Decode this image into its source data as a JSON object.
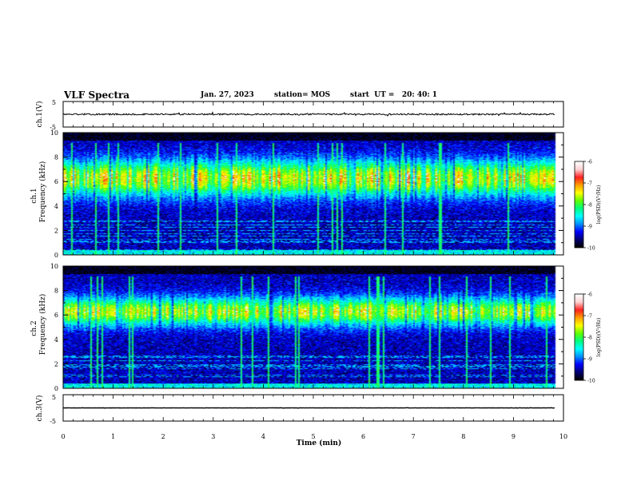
{
  "header": {
    "title": "VLF Spectra",
    "date": "Jan. 27, 2023",
    "station": "station= MOS",
    "start": "start  UT =   20: 40: 1"
  },
  "chart_data": [
    {
      "type": "line",
      "panel": "ch1-waveform",
      "ylabel": "ch.1(V)",
      "ylim": [
        -5,
        5
      ],
      "yticks": [
        "5",
        "-5"
      ],
      "series": [
        {
          "level": 0,
          "noise": 0.3
        }
      ]
    },
    {
      "type": "heatmap",
      "panel": "ch1-spectrogram",
      "ylabel": "ch.1\nFrequency (kHz)",
      "ylim": [
        0,
        10
      ],
      "yticks": [
        "0",
        "2",
        "4",
        "6",
        "8",
        "10"
      ],
      "colorbar": {
        "label": "log(PSD)(V²/Hz)",
        "ticks": [
          "-6",
          "-7",
          "-8",
          "-9",
          "-10"
        ],
        "range": [
          -10,
          -6
        ]
      },
      "band_center_khz": 6.3,
      "band_width_khz": 2.8,
      "peak_log_psd": -6.9
    },
    {
      "type": "heatmap",
      "panel": "ch2-spectrogram",
      "ylabel": "ch.2\nFrequency (kHz)",
      "ylim": [
        0,
        10
      ],
      "yticks": [
        "0",
        "2",
        "4",
        "6",
        "8",
        "10"
      ],
      "colorbar": {
        "label": "log(PSD)(V²/Hz)",
        "ticks": [
          "-6",
          "-7",
          "-8",
          "-9",
          "-10"
        ],
        "range": [
          -10,
          -6
        ]
      },
      "band_center_khz": 6.3,
      "band_width_khz": 2.2,
      "peak_log_psd": -7.1
    },
    {
      "type": "line",
      "panel": "ch3-waveform",
      "ylabel": "ch.3(V)",
      "ylim": [
        -5,
        5
      ],
      "yticks": [
        "5",
        "-5"
      ],
      "series": [
        {
          "level": 0,
          "noise": 0.05
        }
      ]
    }
  ],
  "time_axis": {
    "xlabel": "Time (min)",
    "xlim": [
      0,
      10
    ],
    "xticks": [
      "0",
      "1",
      "2",
      "3",
      "4",
      "5",
      "6",
      "7",
      "8",
      "9",
      "10"
    ],
    "data_end": 9.83
  },
  "colors": {
    "axis": "#000000",
    "colormap": [
      "#000000",
      "#000070",
      "#0000ff",
      "#0090ff",
      "#00ffff",
      "#00ff80",
      "#60ff00",
      "#ffff00",
      "#ffa000",
      "#ff2020",
      "#ffd0d0",
      "#ffffff"
    ]
  }
}
